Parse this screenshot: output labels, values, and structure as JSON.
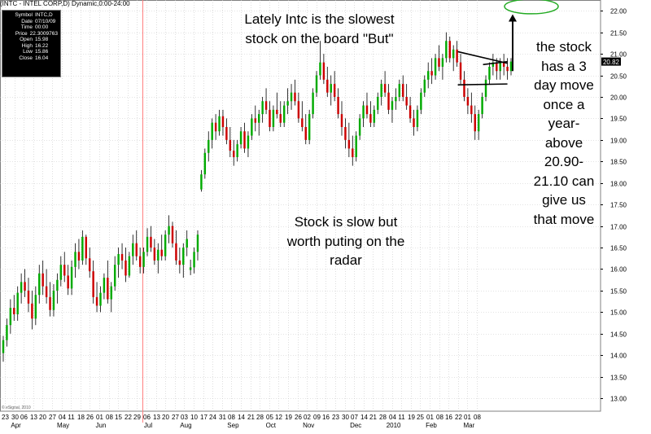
{
  "title": "(INTC - INTEL CORP,D) Dynamic,0:00-24:00",
  "info_box": {
    "rows": [
      {
        "key": "Symbol",
        "value": "INTC,D"
      },
      {
        "key": "Date",
        "value": "07/10/09"
      },
      {
        "key": "Time",
        "value": "00:00"
      },
      {
        "key": "Price",
        "value": "22.3009763"
      },
      {
        "key": "Open",
        "value": "15.98"
      },
      {
        "key": "High",
        "value": "16.22"
      },
      {
        "key": "Low",
        "value": "15.86"
      },
      {
        "key": "Close",
        "value": "16.04"
      }
    ]
  },
  "annotations": {
    "top": [
      "Lately Intc is the slowest",
      "stock on the board \"But\""
    ],
    "middle": [
      "Stock is slow but",
      "worth puting on the",
      "radar"
    ],
    "right": [
      "the stock",
      "has a 3",
      "day move",
      "once a",
      "year-",
      "above",
      "20.90-",
      "21.10 can",
      "give us",
      "that move"
    ]
  },
  "copyright": "© eSignal, 2010",
  "colors": {
    "up_candle": "#00aa00",
    "down_candle": "#cc0000",
    "wick": "#000000",
    "grid": "#c8c8c8",
    "cursor_line": "#ff8080",
    "target_ellipse": "#22aa22",
    "price_tag": "#000000"
  },
  "chart_data": {
    "type": "candlestick",
    "y_axis": {
      "side": "right",
      "ylim": [
        12.7,
        22.25
      ],
      "ticks": [
        13.0,
        13.5,
        14.0,
        14.5,
        15.0,
        15.5,
        16.0,
        16.5,
        17.0,
        17.5,
        18.0,
        18.5,
        19.0,
        19.5,
        20.0,
        20.5,
        21.0,
        21.5,
        22.0
      ],
      "tick_labels": [
        "13.00",
        "13.50",
        "14.00",
        "14.50",
        "15.00",
        "15.50",
        "16.00",
        "16.50",
        "17.00",
        "17.50",
        "18.00",
        "18.50",
        "19.00",
        "19.50",
        "20.00",
        "20.50",
        "21.00",
        "21.50",
        "22.00"
      ],
      "last_price": 20.82,
      "last_price_label": "20.82"
    },
    "x_axis": {
      "day_labels": [
        "23",
        "30",
        "06",
        "13",
        "20",
        "27",
        "04",
        "11",
        "18",
        "26",
        "01",
        "08",
        "15",
        "22",
        "29",
        "06",
        "13",
        "20",
        "27",
        "03",
        "10",
        "17",
        "24",
        "31",
        "08",
        "14",
        "21",
        "28",
        "05",
        "12",
        "19",
        "26",
        "02",
        "09",
        "16",
        "23",
        "30",
        "07",
        "14",
        "21",
        "28",
        "04",
        "11",
        "19",
        "25",
        "01",
        "08",
        "16",
        "22",
        "01",
        "08"
      ],
      "month_labels": [
        {
          "label": "Apr",
          "after_day_index": 1
        },
        {
          "label": "May",
          "after_day_index": 6
        },
        {
          "label": "Jun",
          "after_day_index": 10
        },
        {
          "label": "Jul",
          "after_day_index": 15
        },
        {
          "label": "Aug",
          "after_day_index": 19
        },
        {
          "label": "Sep",
          "after_day_index": 24
        },
        {
          "label": "Oct",
          "after_day_index": 28
        },
        {
          "label": "Nov",
          "after_day_index": 32
        },
        {
          "label": "Dec",
          "after_day_index": 37
        },
        {
          "label": "2010",
          "after_day_index": 41
        },
        {
          "label": "Feb",
          "after_day_index": 45
        },
        {
          "label": "Mar",
          "after_day_index": 49
        }
      ],
      "cursor_after_day_index": 14
    },
    "candles": [
      [
        14.05,
        14.45,
        13.85,
        14.35
      ],
      [
        14.35,
        14.85,
        14.2,
        14.7
      ],
      [
        14.7,
        15.3,
        14.5,
        15.1
      ],
      [
        15.1,
        15.4,
        14.8,
        14.95
      ],
      [
        14.95,
        15.6,
        14.8,
        15.45
      ],
      [
        15.45,
        15.9,
        15.2,
        15.7
      ],
      [
        15.7,
        16.0,
        15.35,
        15.5
      ],
      [
        15.5,
        15.8,
        15.0,
        15.2
      ],
      [
        15.2,
        15.5,
        14.6,
        14.85
      ],
      [
        14.85,
        15.6,
        14.7,
        15.4
      ],
      [
        15.4,
        16.1,
        15.2,
        15.9
      ],
      [
        15.9,
        16.2,
        15.4,
        15.6
      ],
      [
        15.6,
        16.0,
        15.2,
        15.35
      ],
      [
        15.35,
        15.7,
        14.9,
        15.05
      ],
      [
        15.05,
        15.65,
        14.9,
        15.5
      ],
      [
        15.5,
        15.9,
        15.2,
        15.75
      ],
      [
        15.75,
        16.3,
        15.6,
        16.1
      ],
      [
        16.1,
        16.4,
        15.7,
        15.85
      ],
      [
        15.85,
        16.1,
        15.4,
        15.55
      ],
      [
        15.55,
        16.2,
        15.4,
        16.05
      ],
      [
        16.05,
        16.6,
        15.8,
        16.4
      ],
      [
        16.4,
        16.7,
        16.0,
        16.2
      ],
      [
        16.2,
        16.9,
        16.1,
        16.75
      ],
      [
        16.75,
        16.8,
        16.1,
        16.25
      ],
      [
        16.25,
        16.5,
        15.8,
        15.95
      ],
      [
        15.95,
        16.2,
        15.2,
        15.35
      ],
      [
        15.35,
        15.7,
        15.0,
        15.15
      ],
      [
        15.15,
        15.6,
        15.0,
        15.45
      ],
      [
        15.45,
        15.9,
        15.3,
        15.8
      ],
      [
        15.8,
        16.2,
        15.2,
        15.3
      ],
      [
        15.3,
        15.7,
        15.0,
        15.6
      ],
      [
        15.6,
        16.3,
        15.5,
        16.1
      ],
      [
        16.1,
        16.5,
        15.8,
        16.35
      ],
      [
        16.35,
        16.6,
        16.0,
        16.2
      ],
      [
        16.2,
        16.5,
        15.7,
        15.85
      ],
      [
        15.85,
        16.4,
        15.8,
        16.3
      ],
      [
        16.3,
        16.8,
        16.1,
        16.6
      ],
      [
        16.6,
        16.9,
        16.2,
        16.3
      ],
      [
        16.3,
        16.5,
        15.9,
        16.05
      ],
      [
        16.05,
        16.5,
        15.9,
        16.4
      ],
      [
        16.4,
        16.95,
        16.3,
        16.75
      ],
      [
        16.75,
        17.0,
        16.4,
        16.5
      ],
      [
        16.5,
        16.7,
        16.1,
        16.2
      ],
      [
        16.2,
        16.6,
        15.9,
        16.45
      ],
      [
        16.45,
        16.8,
        16.2,
        16.3
      ],
      [
        16.3,
        16.9,
        16.2,
        16.8
      ],
      [
        16.8,
        17.25,
        16.6,
        17.0
      ],
      [
        17.0,
        17.1,
        16.5,
        16.6
      ],
      [
        16.6,
        16.9,
        16.1,
        16.2
      ],
      [
        16.2,
        16.5,
        15.9,
        16.1
      ],
      [
        16.1,
        16.6,
        15.8,
        16.5
      ],
      [
        16.5,
        16.9,
        16.3,
        16.7
      ],
      [
        15.98,
        16.22,
        15.86,
        16.04
      ],
      [
        16.04,
        16.5,
        15.9,
        16.4
      ],
      [
        16.4,
        16.9,
        16.2,
        16.8
      ],
      [
        17.85,
        18.3,
        17.8,
        18.2
      ],
      [
        18.2,
        18.8,
        18.1,
        18.7
      ],
      [
        18.7,
        19.2,
        18.5,
        19.0
      ],
      [
        19.0,
        19.5,
        18.8,
        19.4
      ],
      [
        19.4,
        19.6,
        19.0,
        19.2
      ],
      [
        19.2,
        19.7,
        19.1,
        19.55
      ],
      [
        19.55,
        19.7,
        19.1,
        19.3
      ],
      [
        19.3,
        19.5,
        18.9,
        19.0
      ],
      [
        19.0,
        19.3,
        18.6,
        18.75
      ],
      [
        18.75,
        19.0,
        18.4,
        18.6
      ],
      [
        18.6,
        19.0,
        18.5,
        18.9
      ],
      [
        18.9,
        19.3,
        18.8,
        19.2
      ],
      [
        19.2,
        19.4,
        18.7,
        18.8
      ],
      [
        18.8,
        19.2,
        18.6,
        19.1
      ],
      [
        19.1,
        19.6,
        19.0,
        19.5
      ],
      [
        19.5,
        19.8,
        19.2,
        19.4
      ],
      [
        19.4,
        19.7,
        19.1,
        19.6
      ],
      [
        19.6,
        20.0,
        19.4,
        19.9
      ],
      [
        19.9,
        20.2,
        19.6,
        19.7
      ],
      [
        19.7,
        19.9,
        19.2,
        19.3
      ],
      [
        19.3,
        19.8,
        19.2,
        19.7
      ],
      [
        19.7,
        20.1,
        19.5,
        19.6
      ],
      [
        19.6,
        19.9,
        19.3,
        19.4
      ],
      [
        19.4,
        19.9,
        19.3,
        19.8
      ],
      [
        19.8,
        20.2,
        19.6,
        19.9
      ],
      [
        19.9,
        20.3,
        19.7,
        20.1
      ],
      [
        20.1,
        20.4,
        19.8,
        19.9
      ],
      [
        19.9,
        20.1,
        19.4,
        19.5
      ],
      [
        19.5,
        19.9,
        19.2,
        19.3
      ],
      [
        19.3,
        19.6,
        18.9,
        19.0
      ],
      [
        19.0,
        19.7,
        18.9,
        19.6
      ],
      [
        19.6,
        20.2,
        19.5,
        20.1
      ],
      [
        20.1,
        20.6,
        20.0,
        20.5
      ],
      [
        20.5,
        21.3,
        20.4,
        20.8
      ],
      [
        20.8,
        21.0,
        20.3,
        20.4
      ],
      [
        20.4,
        20.7,
        20.0,
        20.1
      ],
      [
        20.1,
        20.5,
        19.8,
        20.3
      ],
      [
        20.3,
        20.6,
        19.9,
        20.0
      ],
      [
        20.0,
        20.2,
        19.5,
        19.6
      ],
      [
        19.6,
        19.9,
        19.1,
        19.3
      ],
      [
        19.3,
        19.5,
        18.8,
        19.0
      ],
      [
        19.0,
        19.4,
        18.6,
        18.8
      ],
      [
        18.8,
        19.1,
        18.4,
        18.6
      ],
      [
        18.6,
        19.2,
        18.5,
        19.1
      ],
      [
        19.1,
        19.6,
        19.0,
        19.5
      ],
      [
        19.5,
        19.9,
        19.3,
        19.8
      ],
      [
        19.8,
        20.1,
        19.5,
        19.6
      ],
      [
        19.6,
        19.9,
        19.3,
        19.4
      ],
      [
        19.4,
        19.8,
        19.3,
        19.7
      ],
      [
        19.7,
        20.1,
        19.6,
        20.0
      ],
      [
        20.0,
        20.4,
        19.8,
        20.3
      ],
      [
        20.3,
        20.6,
        20.0,
        20.1
      ],
      [
        20.1,
        20.3,
        19.6,
        19.7
      ],
      [
        19.7,
        20.0,
        19.4,
        19.9
      ],
      [
        19.9,
        20.2,
        19.7,
        20.0
      ],
      [
        20.0,
        20.4,
        19.9,
        20.3
      ],
      [
        20.3,
        20.5,
        19.9,
        20.0
      ],
      [
        20.0,
        20.3,
        19.7,
        19.8
      ],
      [
        19.8,
        20.0,
        19.4,
        19.5
      ],
      [
        19.5,
        19.7,
        19.1,
        19.3
      ],
      [
        19.3,
        19.8,
        19.2,
        19.7
      ],
      [
        19.7,
        20.2,
        19.6,
        20.1
      ],
      [
        20.1,
        20.5,
        20.0,
        20.4
      ],
      [
        20.4,
        20.8,
        20.2,
        20.6
      ],
      [
        20.6,
        20.9,
        20.3,
        20.5
      ],
      [
        20.5,
        21.0,
        20.4,
        20.9
      ],
      [
        20.9,
        21.2,
        20.6,
        20.7
      ],
      [
        20.7,
        21.0,
        20.4,
        20.9
      ],
      [
        20.9,
        21.5,
        20.8,
        21.3
      ],
      [
        21.3,
        21.4,
        20.8,
        20.9
      ],
      [
        20.9,
        21.2,
        20.6,
        21.1
      ],
      [
        21.1,
        21.3,
        20.7,
        20.8
      ],
      [
        20.8,
        21.0,
        20.3,
        20.4
      ],
      [
        20.4,
        20.6,
        19.9,
        20.0
      ],
      [
        20.0,
        20.2,
        19.6,
        19.8
      ],
      [
        19.8,
        20.1,
        19.4,
        19.6
      ],
      [
        19.6,
        19.8,
        19.0,
        19.2
      ],
      [
        19.2,
        19.7,
        19.0,
        19.6
      ],
      [
        19.6,
        20.1,
        19.5,
        20.0
      ],
      [
        20.0,
        20.5,
        19.9,
        20.4
      ],
      [
        20.4,
        20.8,
        20.3,
        20.7
      ],
      [
        20.7,
        21.0,
        20.5,
        20.8
      ],
      [
        20.8,
        20.9,
        20.4,
        20.6
      ],
      [
        20.6,
        20.9,
        20.4,
        20.8
      ],
      [
        20.8,
        21.0,
        20.5,
        20.7
      ],
      [
        20.7,
        20.9,
        20.4,
        20.6
      ],
      [
        20.6,
        20.9,
        20.5,
        20.82
      ]
    ],
    "trend_lines": [
      {
        "x1": 133,
        "y1": 21.05,
        "x2": 140,
        "y2": 20.78
      },
      {
        "x1": 133,
        "y1": 20.28,
        "x2": 140,
        "y2": 20.3
      },
      {
        "x1": 140,
        "y1": 20.75,
        "x2": 140,
        "y2": 20.82
      }
    ],
    "target_zone": {
      "price": 22.1,
      "label": ""
    }
  }
}
